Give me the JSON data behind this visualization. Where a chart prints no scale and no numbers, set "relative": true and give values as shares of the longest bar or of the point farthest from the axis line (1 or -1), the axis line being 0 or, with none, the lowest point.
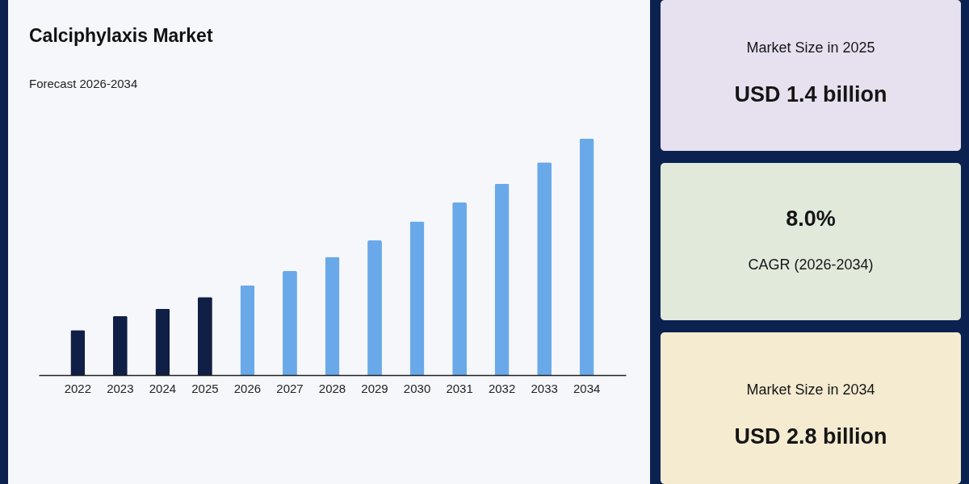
{
  "chart_data": [
    {
      "type": "bar",
      "title": "Calciphylaxis Market",
      "subtitle": "Forecast 2026-2034",
      "relative": true,
      "categories": [
        "2022",
        "2023",
        "2024",
        "2025",
        "2026",
        "2027",
        "2028",
        "2029",
        "2030",
        "2031",
        "2032",
        "2033",
        "2034"
      ],
      "values": [
        0.19,
        0.25,
        0.28,
        0.33,
        0.38,
        0.44,
        0.5,
        0.57,
        0.65,
        0.73,
        0.81,
        0.9,
        1
      ],
      "colors": [
        "#0f1f45",
        "#0f1f45",
        "#0f1f45",
        "#0f1f45",
        "#6aa9e9",
        "#6aa9e9",
        "#6aa9e9",
        "#6aa9e9",
        "#6aa9e9",
        "#6aa9e9",
        "#6aa9e9",
        "#6aa9e9",
        "#6aa9e9"
      ]
    },
    {
      "type": "other",
      "annotations": [
        "Market Size in 2025",
        "USD 1.4 billion"
      ]
    },
    {
      "type": "other",
      "annotations": [
        "8.0%",
        "CAGR (2026-2034)"
      ]
    },
    {
      "type": "other",
      "annotations": [
        "Market Size in 2034",
        "USD 2.8 billion"
      ]
    }
  ]
}
